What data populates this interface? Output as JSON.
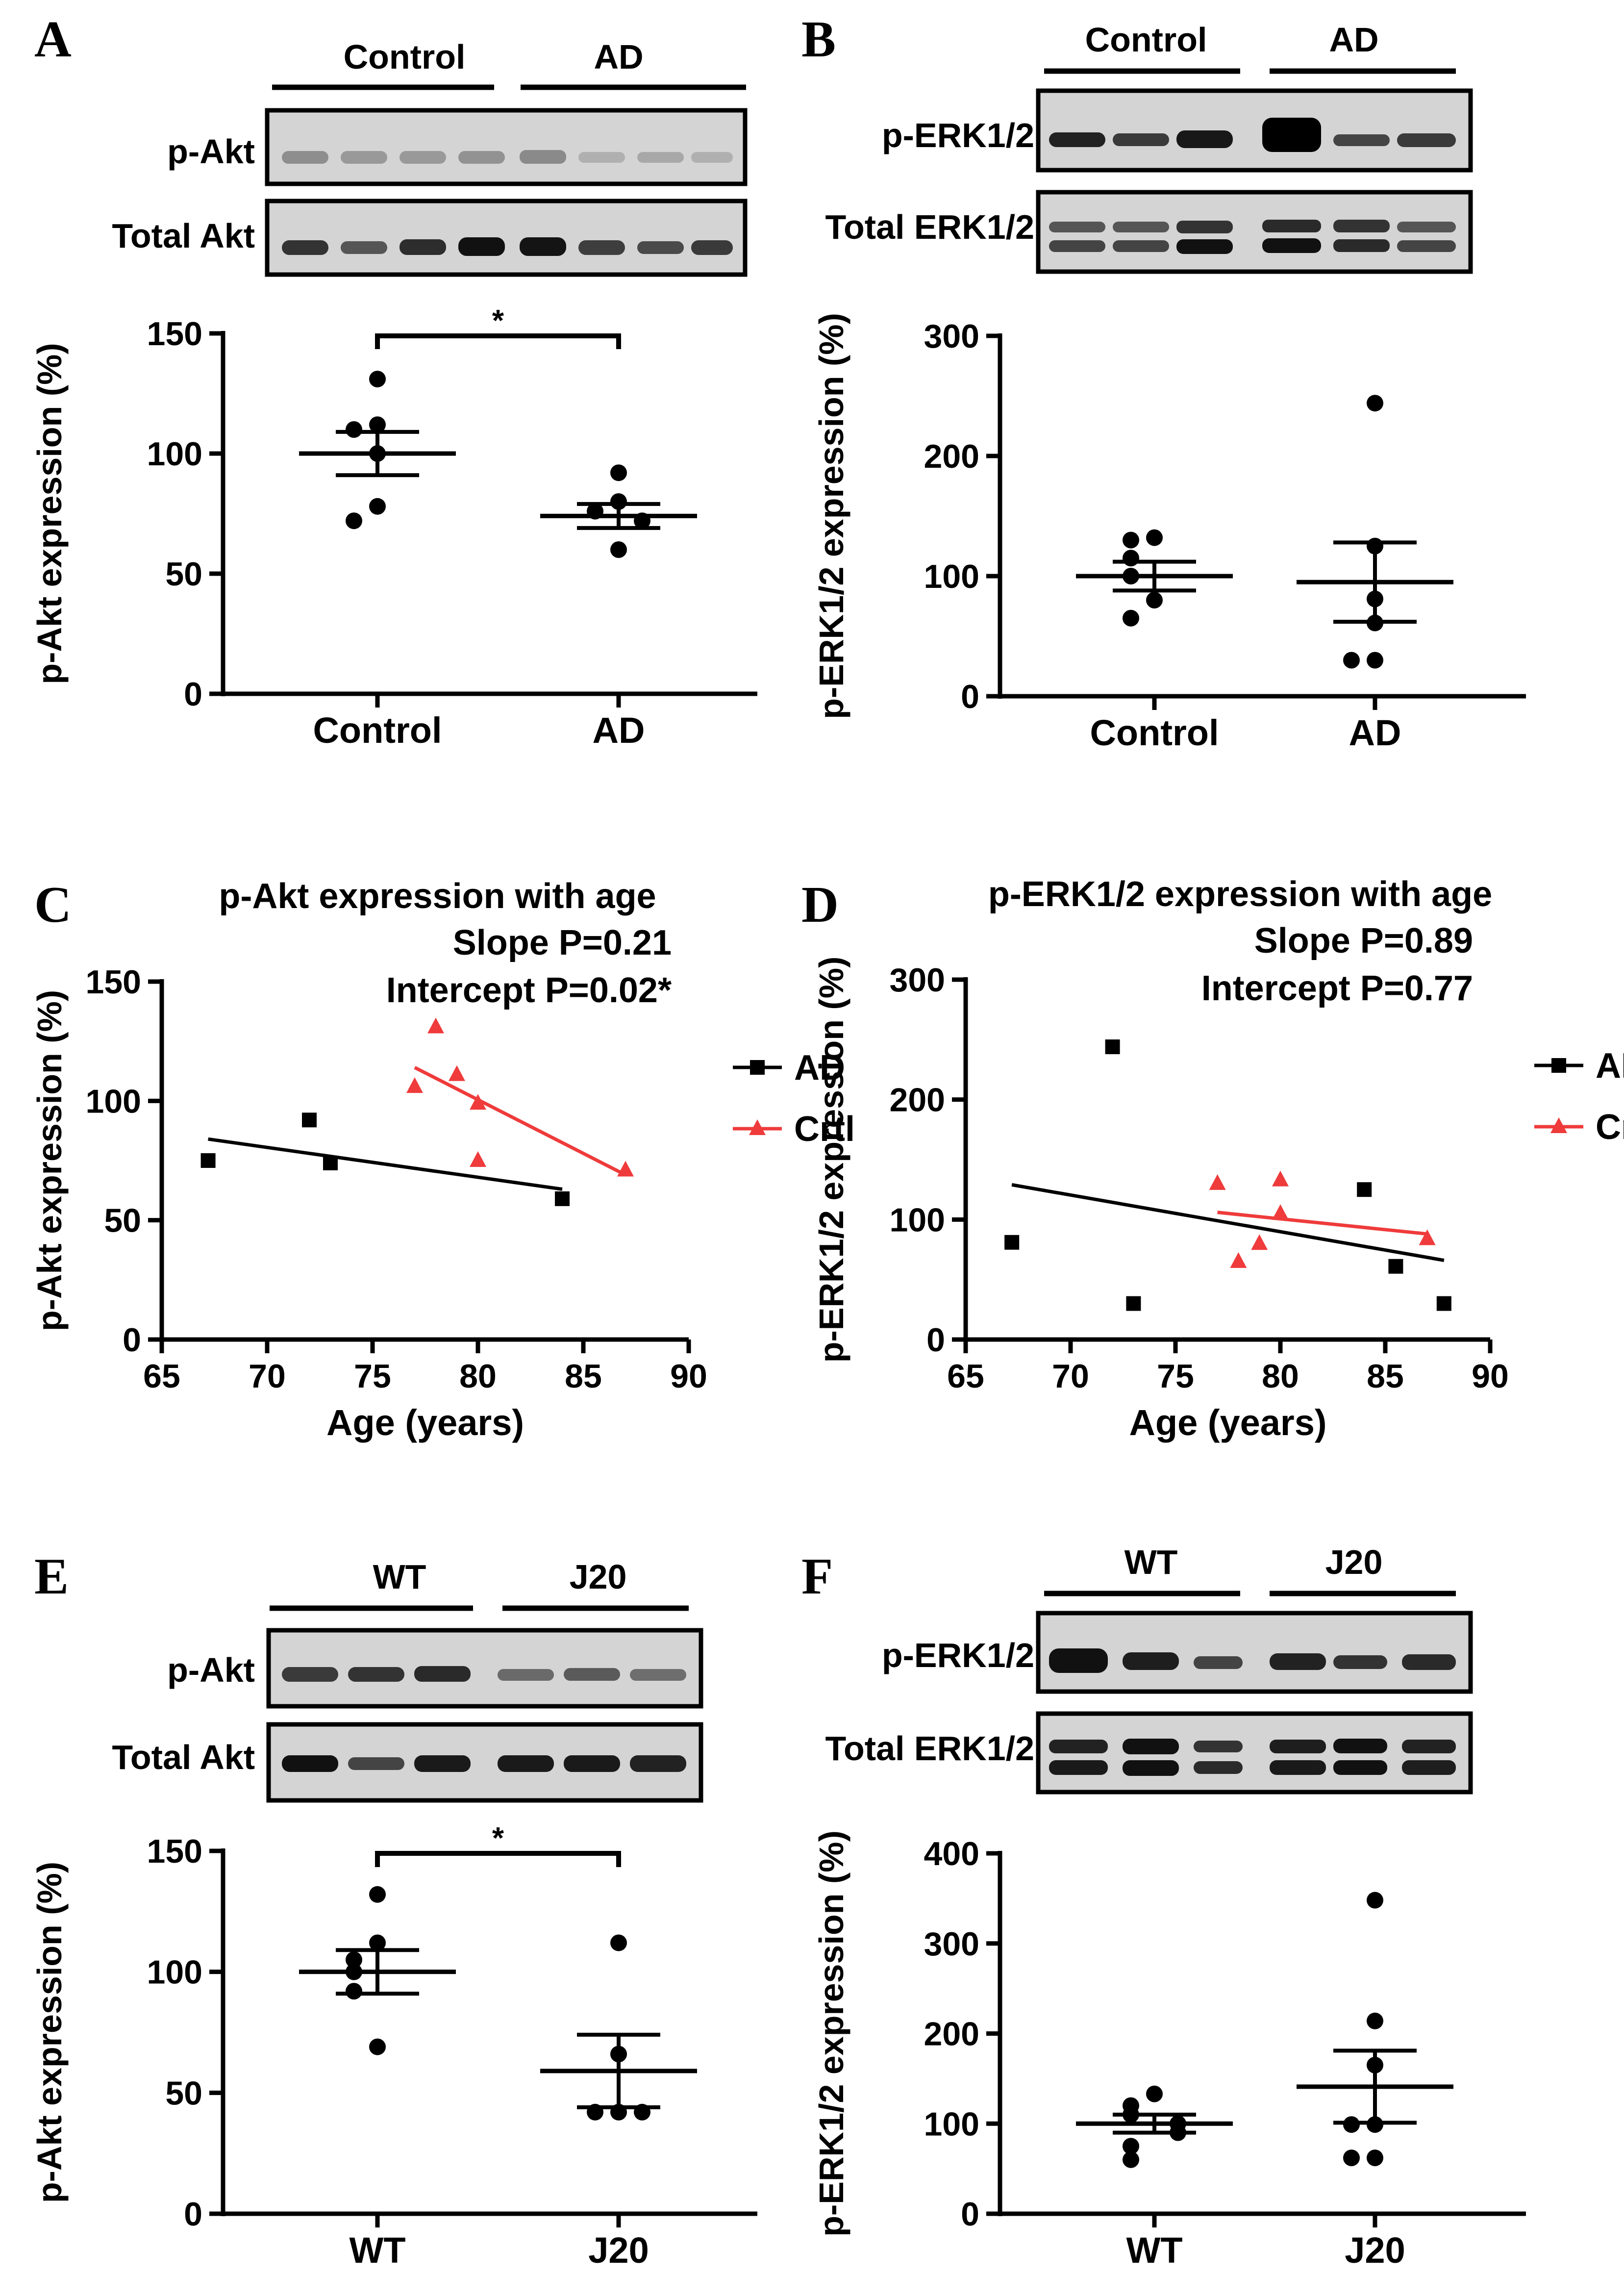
{
  "colors": {
    "ink": "#000000",
    "crtl_red": "#ef3b3b",
    "blot_bg": "#d2d2d2",
    "blot_band": "#1e1e1e",
    "error_bar": "#000000"
  },
  "figures": {
    "A": {
      "letter": "A",
      "blot": {
        "groups": [
          "Control",
          "AD"
        ],
        "rows": [
          "p-Akt",
          "Total Akt"
        ]
      },
      "significance": "*"
    },
    "B": {
      "letter": "B",
      "blot": {
        "groups": [
          "Control",
          "AD"
        ],
        "rows": [
          "p-ERK1/2",
          "Total ERK1/2"
        ]
      }
    },
    "C": {
      "letter": "C"
    },
    "D": {
      "letter": "D"
    },
    "E": {
      "letter": "E",
      "blot": {
        "groups": [
          "WT",
          "J20"
        ],
        "rows": [
          "p-Akt",
          "Total Akt"
        ]
      },
      "significance": "*"
    },
    "F": {
      "letter": "F",
      "blot": {
        "groups": [
          "WT",
          "J20"
        ],
        "rows": [
          "p-ERK1/2",
          "Total ERK1/2"
        ]
      }
    }
  },
  "chart_data": [
    {
      "panel": "A",
      "type": "scatter",
      "title": "",
      "xlabel": "",
      "ylabel": "p-Akt expression (%)",
      "categories": [
        "Control",
        "AD"
      ],
      "ylim": [
        0,
        150
      ],
      "yticks": [
        "0",
        "50",
        "100",
        "150"
      ],
      "points": [
        [
          131,
          112,
          110,
          100,
          78,
          72
        ],
        [
          92,
          80,
          76,
          72,
          60
        ]
      ],
      "mean": [
        100,
        74
      ],
      "sem": [
        9,
        5
      ]
    },
    {
      "panel": "B",
      "type": "scatter",
      "title": "",
      "xlabel": "",
      "ylabel": "p-ERK1/2 expression (%)",
      "categories": [
        "Control",
        "AD"
      ],
      "ylim": [
        0,
        300
      ],
      "yticks": [
        "0",
        "100",
        "200",
        "300"
      ],
      "points": [
        [
          132,
          130,
          115,
          100,
          80,
          65
        ],
        [
          244,
          125,
          81,
          61,
          30,
          30
        ]
      ],
      "mean": [
        100,
        95
      ],
      "sem": [
        12,
        33
      ]
    },
    {
      "panel": "C",
      "type": "scatter",
      "title": "p-Akt expression with age",
      "annotations": [
        "Slope P=0.21",
        "Intercept P=0.02*"
      ],
      "xlabel": "Age (years)",
      "ylabel": "p-Akt expression (%)",
      "xlim": [
        65,
        90
      ],
      "xticks": [
        "65",
        "70",
        "75",
        "80",
        "85",
        "90"
      ],
      "ylim": [
        0,
        150
      ],
      "yticks": [
        "0",
        "50",
        "100",
        "150"
      ],
      "legend_position": "right",
      "series": [
        {
          "name": "AD",
          "marker": "square",
          "color": "#000000",
          "x": [
            67.2,
            72,
            73,
            84
          ],
          "y": [
            75,
            92,
            74,
            59
          ],
          "fit": [
            [
              67.2,
              84
            ],
            [
              84,
              63
            ]
          ]
        },
        {
          "name": "Crtl",
          "marker": "triangle",
          "color": "#ef3b3b",
          "x": [
            77,
            78,
            79,
            80,
            80,
            87
          ],
          "y": [
            106,
            131,
            111,
            99,
            75,
            71
          ],
          "fit": [
            [
              77,
              87
            ],
            [
              114,
              69
            ]
          ]
        }
      ]
    },
    {
      "panel": "D",
      "type": "scatter",
      "title": "p-ERK1/2 expression with age",
      "annotations": [
        "Slope P=0.89",
        "Intercept P=0.77"
      ],
      "xlabel": "Age (years)",
      "ylabel": "p-ERK1/2 expression (%)",
      "xlim": [
        65,
        90
      ],
      "xticks": [
        "65",
        "70",
        "75",
        "80",
        "85",
        "90"
      ],
      "ylim": [
        0,
        300
      ],
      "yticks": [
        "0",
        "100",
        "200",
        "300"
      ],
      "legend_position": "right",
      "series": [
        {
          "name": "AD",
          "marker": "square",
          "color": "#000000",
          "x": [
            67.2,
            72,
            73,
            84,
            85.5,
            87.8
          ],
          "y": [
            81,
            244,
            30,
            125,
            61,
            30
          ],
          "fit": [
            [
              67.2,
              87.8
            ],
            [
              129,
              66
            ]
          ]
        },
        {
          "name": "Crtl",
          "marker": "triangle",
          "color": "#ef3b3b",
          "x": [
            77,
            78,
            79,
            80,
            80,
            87
          ],
          "y": [
            130,
            65,
            80,
            133,
            105,
            84
          ],
          "fit": [
            [
              77,
              87
            ],
            [
              106,
              88
            ]
          ]
        }
      ]
    },
    {
      "panel": "E",
      "type": "scatter",
      "title": "",
      "xlabel": "",
      "ylabel": "p-Akt expression (%)",
      "categories": [
        "WT",
        "J20"
      ],
      "ylim": [
        0,
        150
      ],
      "yticks": [
        "0",
        "50",
        "100",
        "150"
      ],
      "points": [
        [
          132,
          112,
          105,
          100,
          92,
          69
        ],
        [
          112,
          66,
          42,
          42,
          42
        ]
      ],
      "mean": [
        100,
        59
      ],
      "sem": [
        9,
        15
      ]
    },
    {
      "panel": "F",
      "type": "scatter",
      "title": "",
      "xlabel": "",
      "ylabel": "p-ERK1/2 expression (%)",
      "categories": [
        "WT",
        "J20"
      ],
      "ylim": [
        0,
        400
      ],
      "yticks": [
        "0",
        "100",
        "200",
        "300",
        "400"
      ],
      "points": [
        [
          133,
          120,
          110,
          100,
          90,
          75,
          60
        ],
        [
          348,
          214,
          165,
          99,
          99,
          62,
          62
        ]
      ],
      "mean": [
        100,
        141
      ],
      "sem": [
        10,
        40
      ]
    }
  ]
}
